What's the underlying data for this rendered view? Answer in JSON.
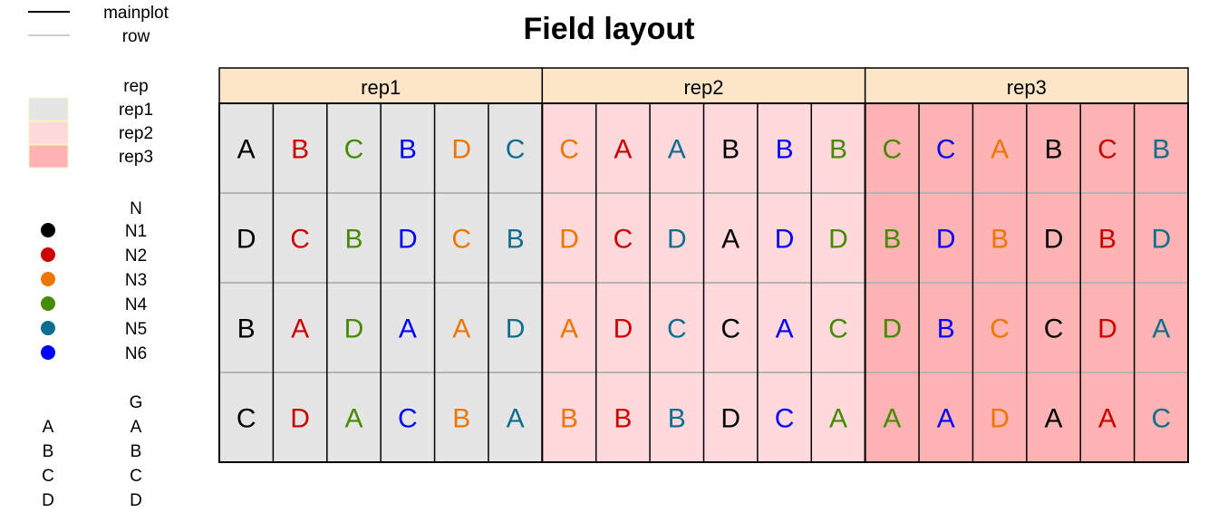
{
  "title": "Field layout",
  "legend": {
    "lines": [
      {
        "label": "mainplot",
        "color": "#000000"
      },
      {
        "label": "row",
        "color": "#bebebe"
      }
    ],
    "rep": {
      "title": "rep",
      "items": [
        {
          "label": "rep1",
          "color": "#e5e5e5"
        },
        {
          "label": "rep2",
          "color": "#ffd9dc"
        },
        {
          "label": "rep3",
          "color": "#ffb3b3"
        }
      ]
    },
    "N": {
      "title": "N",
      "items": [
        {
          "label": "N1",
          "color": "#000000"
        },
        {
          "label": "N2",
          "color": "#cd0000"
        },
        {
          "label": "N3",
          "color": "#ee7600"
        },
        {
          "label": "N4",
          "color": "#458b00"
        },
        {
          "label": "N5",
          "color": "#0e6e8e"
        },
        {
          "label": "N6",
          "color": "#0000ff"
        }
      ]
    },
    "G": {
      "title": "G",
      "items": [
        {
          "key": "A",
          "label": "A"
        },
        {
          "key": "B",
          "label": "B"
        },
        {
          "key": "C",
          "label": "C"
        },
        {
          "key": "D",
          "label": "D"
        }
      ]
    }
  },
  "reps": [
    {
      "label": "rep1",
      "fill": "#e5e5e5",
      "rows": [
        [
          {
            "g": "A",
            "n": "N1"
          },
          {
            "g": "B",
            "n": "N2"
          },
          {
            "g": "C",
            "n": "N4"
          },
          {
            "g": "B",
            "n": "N6"
          },
          {
            "g": "D",
            "n": "N3"
          },
          {
            "g": "C",
            "n": "N5"
          }
        ],
        [
          {
            "g": "D",
            "n": "N1"
          },
          {
            "g": "C",
            "n": "N2"
          },
          {
            "g": "B",
            "n": "N4"
          },
          {
            "g": "D",
            "n": "N6"
          },
          {
            "g": "C",
            "n": "N3"
          },
          {
            "g": "B",
            "n": "N5"
          }
        ],
        [
          {
            "g": "B",
            "n": "N1"
          },
          {
            "g": "A",
            "n": "N2"
          },
          {
            "g": "D",
            "n": "N4"
          },
          {
            "g": "A",
            "n": "N6"
          },
          {
            "g": "A",
            "n": "N3"
          },
          {
            "g": "D",
            "n": "N5"
          }
        ],
        [
          {
            "g": "C",
            "n": "N1"
          },
          {
            "g": "D",
            "n": "N2"
          },
          {
            "g": "A",
            "n": "N4"
          },
          {
            "g": "C",
            "n": "N6"
          },
          {
            "g": "B",
            "n": "N3"
          },
          {
            "g": "A",
            "n": "N5"
          }
        ]
      ]
    },
    {
      "label": "rep2",
      "fill": "#ffd9dc",
      "rows": [
        [
          {
            "g": "C",
            "n": "N3"
          },
          {
            "g": "A",
            "n": "N2"
          },
          {
            "g": "A",
            "n": "N5"
          },
          {
            "g": "B",
            "n": "N1"
          },
          {
            "g": "B",
            "n": "N6"
          },
          {
            "g": "B",
            "n": "N4"
          }
        ],
        [
          {
            "g": "D",
            "n": "N3"
          },
          {
            "g": "C",
            "n": "N2"
          },
          {
            "g": "D",
            "n": "N5"
          },
          {
            "g": "A",
            "n": "N1"
          },
          {
            "g": "D",
            "n": "N6"
          },
          {
            "g": "D",
            "n": "N4"
          }
        ],
        [
          {
            "g": "A",
            "n": "N3"
          },
          {
            "g": "D",
            "n": "N2"
          },
          {
            "g": "C",
            "n": "N5"
          },
          {
            "g": "C",
            "n": "N1"
          },
          {
            "g": "A",
            "n": "N6"
          },
          {
            "g": "C",
            "n": "N4"
          }
        ],
        [
          {
            "g": "B",
            "n": "N3"
          },
          {
            "g": "B",
            "n": "N2"
          },
          {
            "g": "B",
            "n": "N5"
          },
          {
            "g": "D",
            "n": "N1"
          },
          {
            "g": "C",
            "n": "N6"
          },
          {
            "g": "A",
            "n": "N4"
          }
        ]
      ]
    },
    {
      "label": "rep3",
      "fill": "#ffb3b3",
      "rows": [
        [
          {
            "g": "C",
            "n": "N4"
          },
          {
            "g": "C",
            "n": "N6"
          },
          {
            "g": "A",
            "n": "N3"
          },
          {
            "g": "B",
            "n": "N1"
          },
          {
            "g": "C",
            "n": "N2"
          },
          {
            "g": "B",
            "n": "N5"
          }
        ],
        [
          {
            "g": "B",
            "n": "N4"
          },
          {
            "g": "D",
            "n": "N6"
          },
          {
            "g": "B",
            "n": "N3"
          },
          {
            "g": "D",
            "n": "N1"
          },
          {
            "g": "B",
            "n": "N2"
          },
          {
            "g": "D",
            "n": "N5"
          }
        ],
        [
          {
            "g": "D",
            "n": "N4"
          },
          {
            "g": "B",
            "n": "N6"
          },
          {
            "g": "C",
            "n": "N3"
          },
          {
            "g": "C",
            "n": "N1"
          },
          {
            "g": "D",
            "n": "N2"
          },
          {
            "g": "A",
            "n": "N5"
          }
        ],
        [
          {
            "g": "A",
            "n": "N4"
          },
          {
            "g": "A",
            "n": "N6"
          },
          {
            "g": "D",
            "n": "N3"
          },
          {
            "g": "A",
            "n": "N1"
          },
          {
            "g": "A",
            "n": "N2"
          },
          {
            "g": "C",
            "n": "N5"
          }
        ]
      ]
    }
  ],
  "colors": {
    "header_fill": "#fde5c8",
    "row_line": "#b4b4b4",
    "mainplot_line": "#000000",
    "legend_box_border": "#f5f5c0"
  }
}
